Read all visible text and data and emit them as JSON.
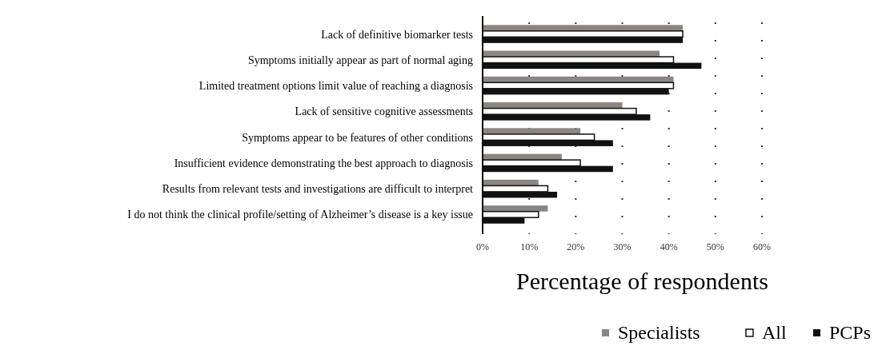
{
  "chart_data": {
    "type": "bar",
    "orientation": "horizontal",
    "categories": [
      "Lack of definitive biomarker tests",
      "Symptoms initially appear as part of normal aging",
      "Limited treatment options limit value of reaching a diagnosis",
      "Lack of sensitive cognitive assessments",
      "Symptoms appear to be features of other conditions",
      "Insufficient evidence demonstrating the best approach to diagnosis",
      "Results from relevant tests and investigations are difficult to interpret",
      "I do not think the clinical profile/setting of Alzheimer’s disease is a key issue"
    ],
    "series": [
      {
        "name": "Specialists",
        "color": "#8c8683",
        "values": [
          43,
          38,
          41,
          30,
          21,
          17,
          12,
          14
        ]
      },
      {
        "name": "All",
        "color": "#ffffff",
        "values": [
          43,
          41,
          41,
          33,
          24,
          21,
          14,
          12
        ]
      },
      {
        "name": "PCPs",
        "color": "#111111",
        "values": [
          43,
          47,
          40,
          36,
          28,
          28,
          16,
          9
        ]
      }
    ],
    "xlabel": "Percentage of respondents",
    "xlim": [
      0,
      60
    ],
    "xticks": [
      {
        "value": 0,
        "label": "0%"
      },
      {
        "value": 10,
        "label": "10%"
      },
      {
        "value": 20,
        "label": "20%"
      },
      {
        "value": 30,
        "label": "30%"
      },
      {
        "value": 40,
        "label": "40%"
      },
      {
        "value": 50,
        "label": "50%"
      },
      {
        "value": 60,
        "label": "60%"
      }
    ],
    "grid": "x",
    "legend": "bottom"
  }
}
